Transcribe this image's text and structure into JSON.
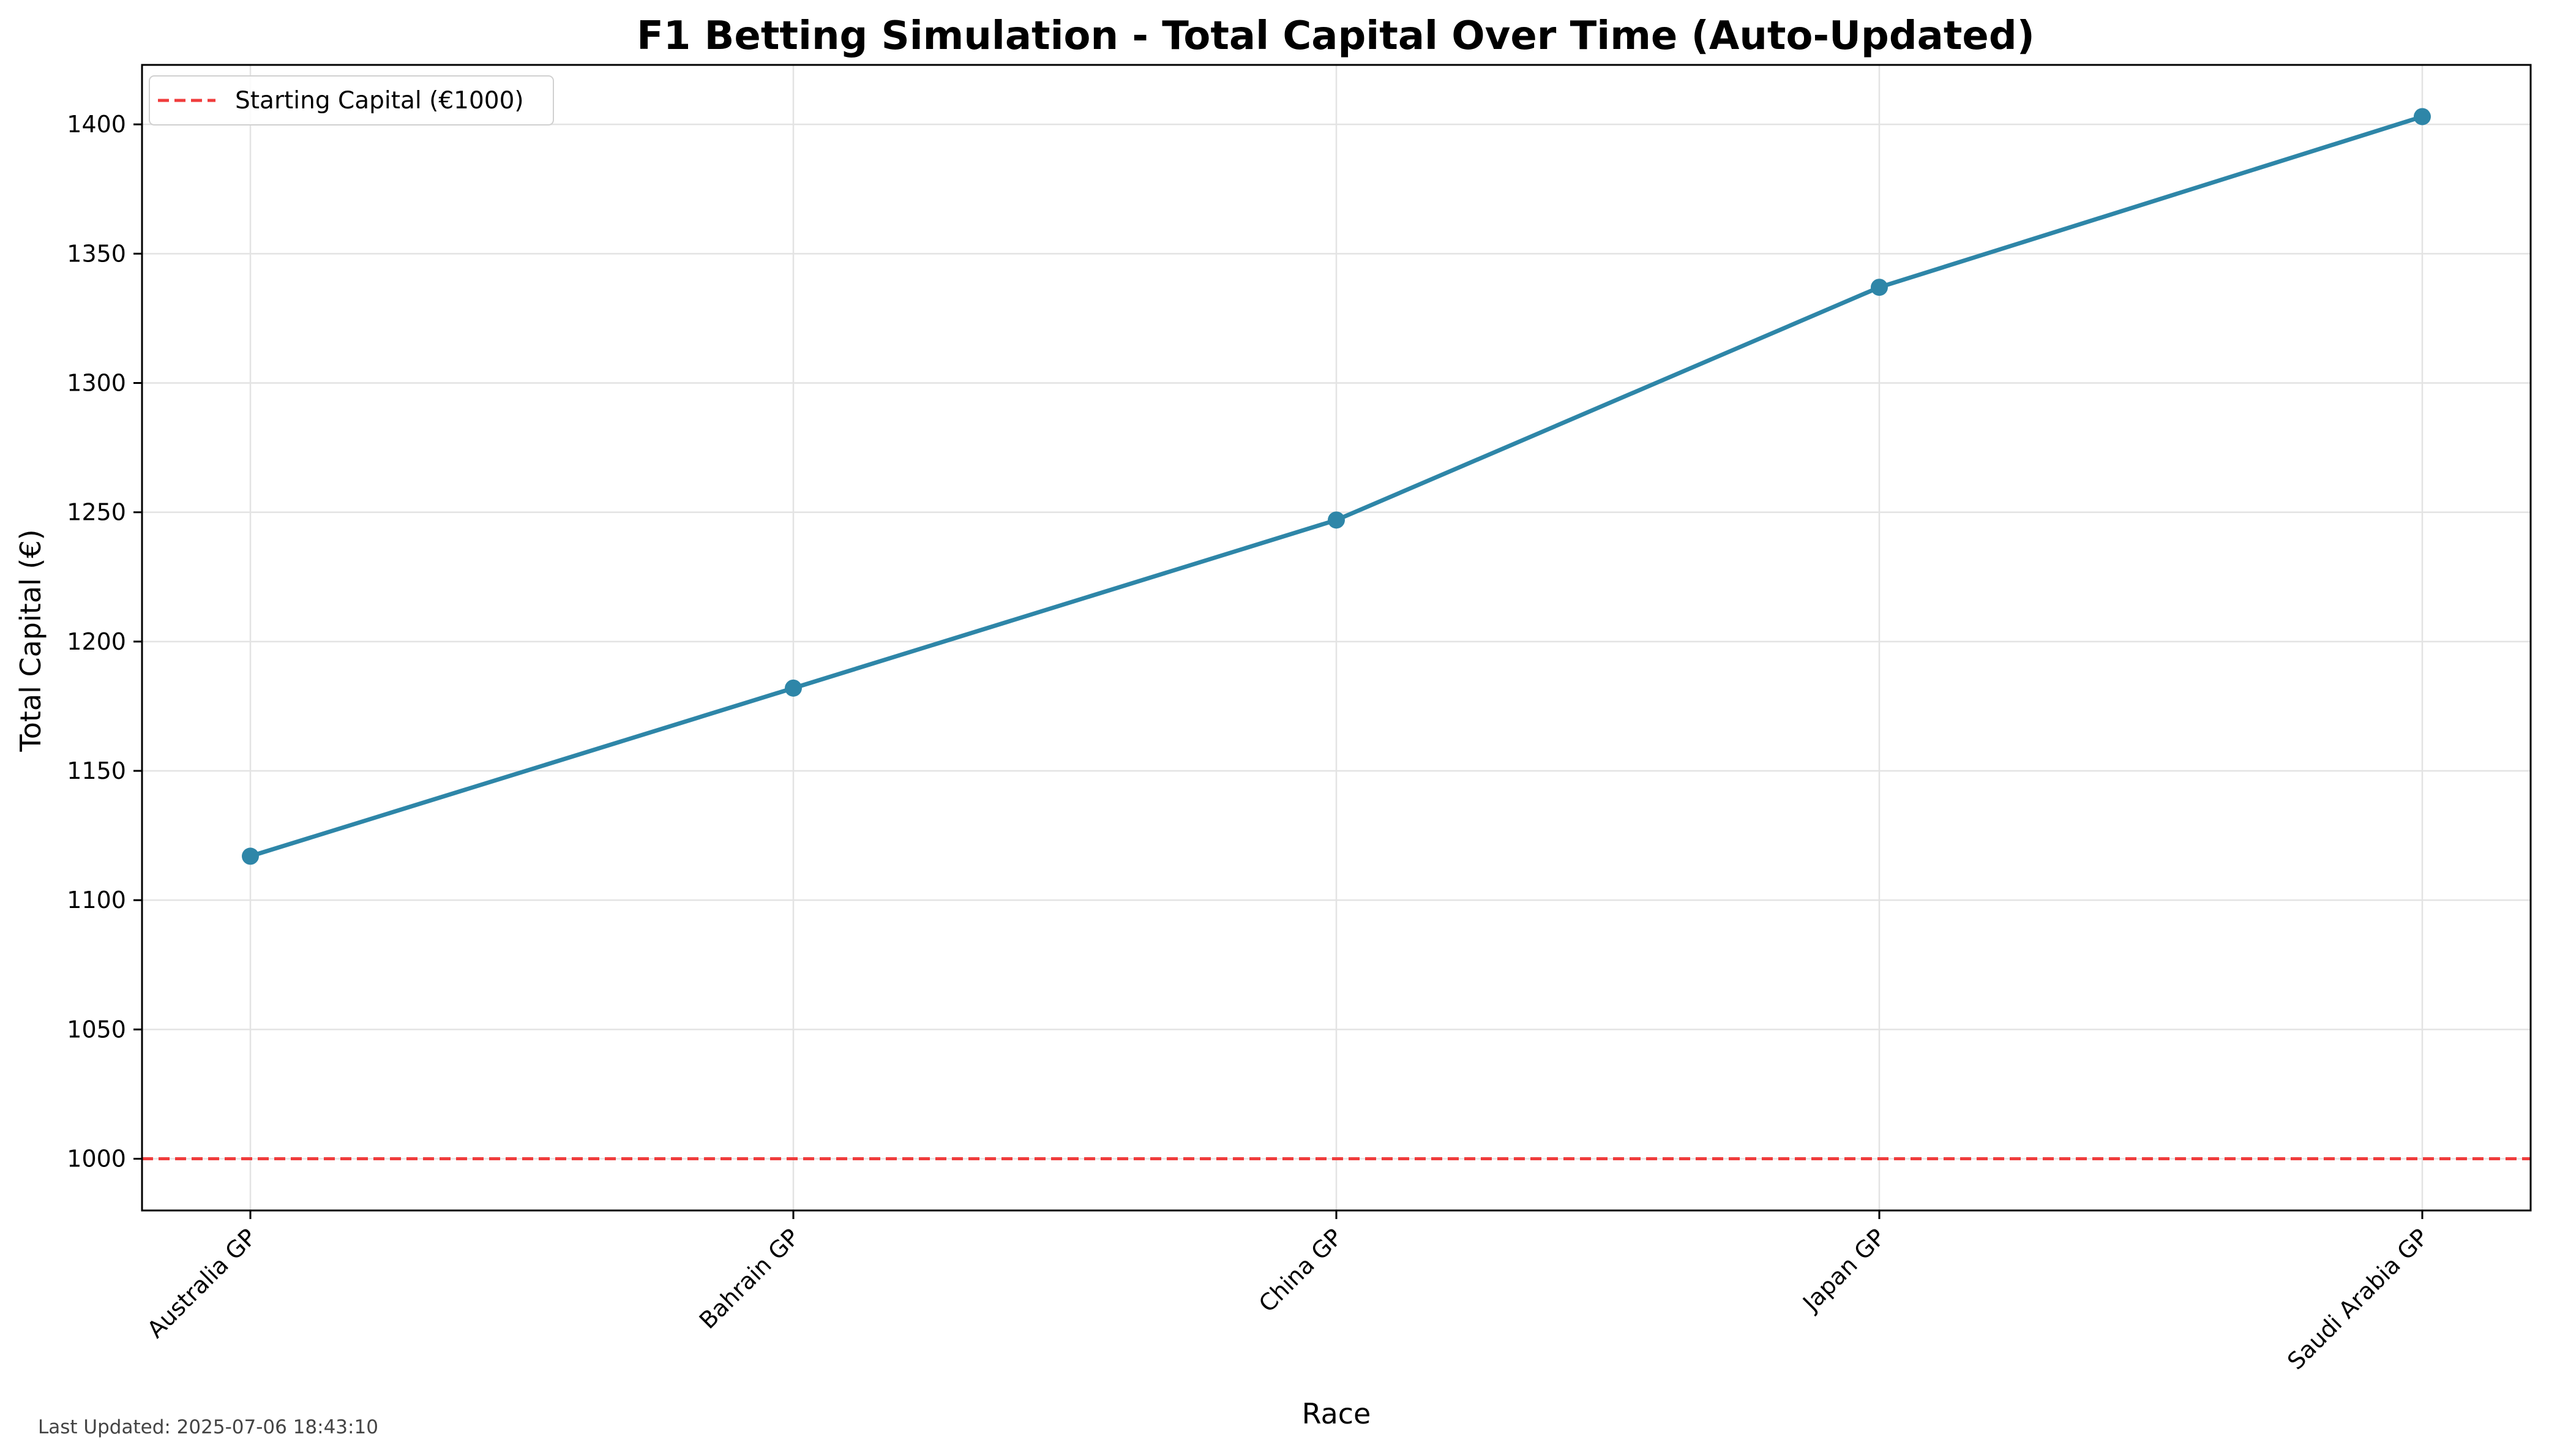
{
  "chart_data": {
    "type": "line",
    "title": "F1 Betting Simulation - Total Capital Over Time (Auto-Updated)",
    "xlabel": "Race",
    "ylabel": "Total Capital (€)",
    "categories": [
      "Australia GP",
      "Bahrain GP",
      "China GP",
      "Japan GP",
      "Saudi Arabia GP"
    ],
    "series": [
      {
        "values": [
          1117,
          1182,
          1247,
          1337,
          1403
        ],
        "color": "#2e86a8"
      }
    ],
    "reference_line": {
      "value": 1000,
      "label": "Starting Capital (€1000)",
      "color": "#f03c3c",
      "style": "dashed"
    },
    "ylim": [
      980,
      1423
    ],
    "yticks": [
      1000,
      1050,
      1100,
      1150,
      1200,
      1250,
      1300,
      1350,
      1400
    ],
    "grid": true,
    "legend_placement": "top-left",
    "footer": "Last Updated: 2025-07-06 18:43:10"
  }
}
